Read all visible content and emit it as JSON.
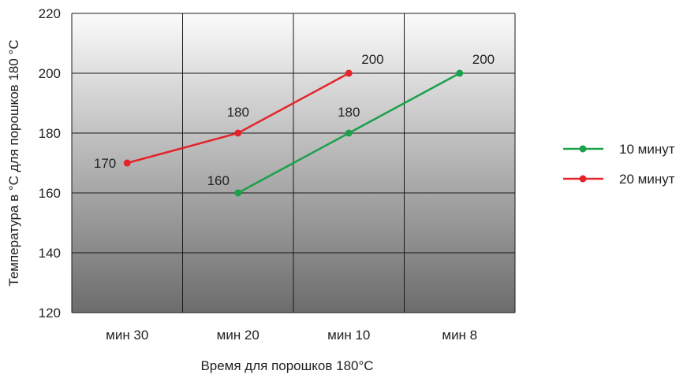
{
  "chart_data": {
    "type": "line",
    "title": "",
    "xlabel": "Время для порошков 180°C",
    "ylabel": "Температура в °C для порошков 180 °C",
    "categories": [
      "мин 30",
      "мин 20",
      "мин 10",
      "мин 8"
    ],
    "ylim": [
      120,
      220
    ],
    "yticks": [
      120,
      140,
      160,
      180,
      200,
      220
    ],
    "grid": true,
    "legend_position": "right",
    "series": [
      {
        "name": "10 минут",
        "color": "#1aa14a",
        "values": [
          null,
          160,
          180,
          200
        ],
        "labels": [
          null,
          "160",
          "180",
          "200"
        ]
      },
      {
        "name": "20 минут",
        "color": "#e3242b",
        "values": [
          170,
          180,
          200,
          null
        ],
        "labels": [
          "170",
          "180",
          "200",
          null
        ]
      }
    ]
  }
}
